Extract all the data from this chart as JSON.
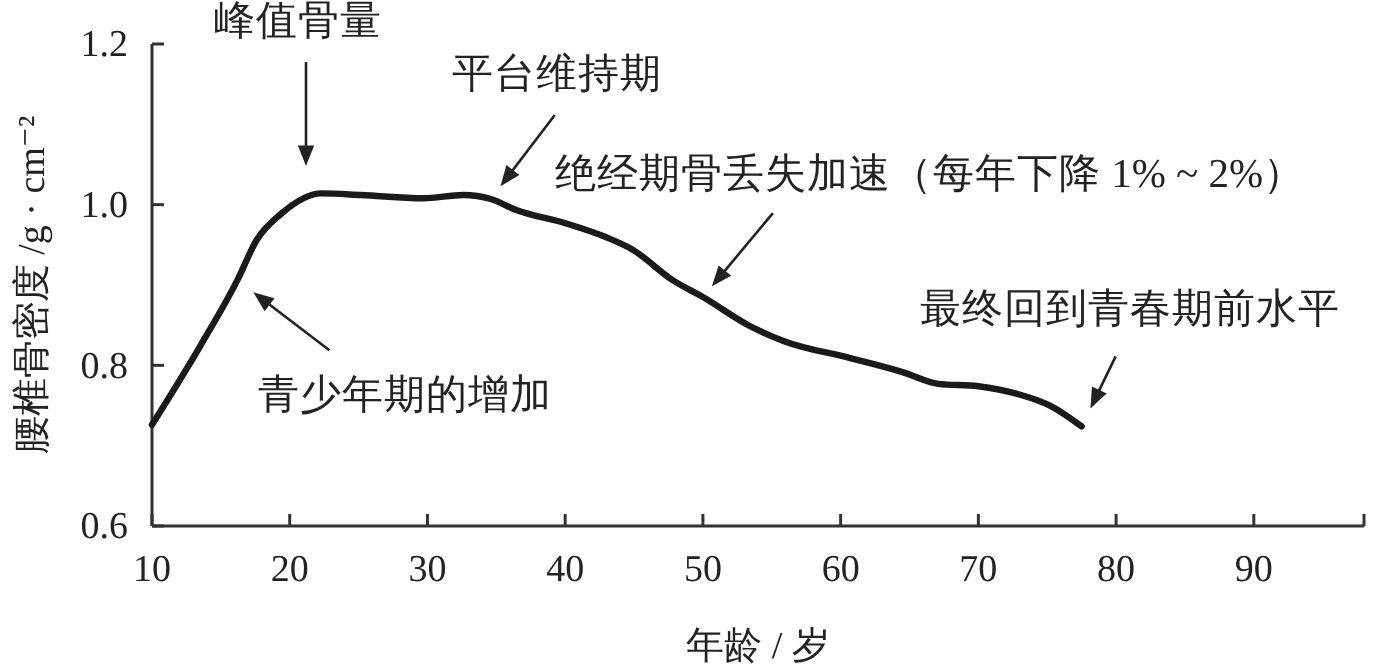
{
  "chart_data": {
    "type": "line",
    "xlabel": "年龄 / 岁",
    "ylabel": "腰椎骨密度 /g · cm⁻²",
    "xlim": [
      10,
      98
    ],
    "xticks": [
      10,
      20,
      30,
      40,
      50,
      60,
      70,
      80,
      90,
      {
        "value": 98,
        "label": null
      }
    ],
    "ylim": [
      0.6,
      1.2
    ],
    "yticks": [
      0.6,
      0.8,
      {
        "value": 1,
        "label": "1.0"
      },
      1.2
    ],
    "marker": "none",
    "line_style": "solid",
    "series": [
      {
        "color": "#1a1a1a",
        "x": [
          10,
          13.5,
          16.2,
          17.6,
          19.4,
          22.3,
          25.2,
          29.7,
          32.6,
          34.6,
          36.5,
          40,
          42.9,
          44.9,
          47.8,
          50,
          53.4,
          55.9,
          60.7,
          64.6,
          67.1,
          70,
          72.9,
          75.3,
          77.5
        ],
        "values": [
          0.726,
          0.824,
          0.906,
          0.956,
          0.989,
          1.014,
          1.012,
          1.008,
          1.012,
          1.007,
          0.993,
          0.977,
          0.96,
          0.944,
          0.906,
          0.885,
          0.849,
          0.83,
          0.809,
          0.791,
          0.777,
          0.774,
          0.764,
          0.749,
          0.724
        ]
      }
    ],
    "annotations": [
      "峰值骨量",
      {
        "text": "平台维持期",
        "x": 34.6,
        "y": 1.007
      },
      {
        "text": "绝经期骨丢失加速（每年下降 1% ~ 2%）",
        "x": 50,
        "y": 0.885
      },
      {
        "text": "最终回到青春期前水平",
        "x": 77.5,
        "y": 0.724
      },
      {
        "text": "青少年期的增加",
        "x": 16.2,
        "y": 0.906
      }
    ]
  }
}
